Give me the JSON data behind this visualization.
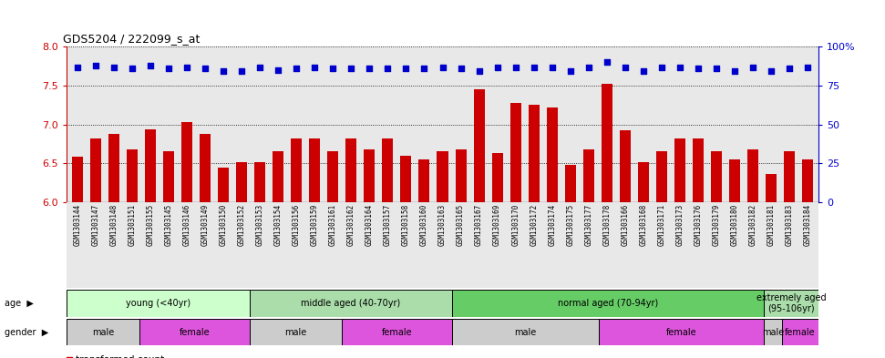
{
  "title": "GDS5204 / 222099_s_at",
  "samples": [
    "GSM1303144",
    "GSM1303147",
    "GSM1303148",
    "GSM1303151",
    "GSM1303155",
    "GSM1303145",
    "GSM1303146",
    "GSM1303149",
    "GSM1303150",
    "GSM1303152",
    "GSM1303153",
    "GSM1303154",
    "GSM1303156",
    "GSM1303159",
    "GSM1303161",
    "GSM1303162",
    "GSM1303164",
    "GSM1303157",
    "GSM1303158",
    "GSM1303160",
    "GSM1303163",
    "GSM1303165",
    "GSM1303167",
    "GSM1303169",
    "GSM1303170",
    "GSM1303172",
    "GSM1303174",
    "GSM1303175",
    "GSM1303177",
    "GSM1303178",
    "GSM1303166",
    "GSM1303168",
    "GSM1303171",
    "GSM1303173",
    "GSM1303176",
    "GSM1303179",
    "GSM1303180",
    "GSM1303182",
    "GSM1303181",
    "GSM1303183",
    "GSM1303184"
  ],
  "bar_values": [
    6.58,
    6.82,
    6.88,
    6.68,
    6.94,
    6.66,
    7.03,
    6.88,
    6.44,
    6.52,
    6.52,
    6.65,
    6.82,
    6.82,
    6.66,
    6.82,
    6.68,
    6.82,
    6.6,
    6.55,
    6.65,
    6.68,
    7.45,
    6.63,
    7.28,
    7.25,
    7.22,
    6.48,
    6.68,
    7.52,
    6.92,
    6.52,
    6.66,
    6.82,
    6.82,
    6.65,
    6.55,
    6.68,
    6.36,
    6.65,
    6.55
  ],
  "percentile_values": [
    86.5,
    87.5,
    86.5,
    86.0,
    87.5,
    86.0,
    86.5,
    86.0,
    84.0,
    84.0,
    86.5,
    85.0,
    86.0,
    86.5,
    86.0,
    86.0,
    86.0,
    86.0,
    86.0,
    86.0,
    86.5,
    86.0,
    84.0,
    86.5,
    86.5,
    86.5,
    86.5,
    84.0,
    86.5,
    90.0,
    86.5,
    84.0,
    86.5,
    86.5,
    86.0,
    86.0,
    84.0,
    86.5,
    84.0,
    86.0,
    86.5
  ],
  "ylim_left": [
    6.0,
    8.0
  ],
  "ylim_right": [
    0,
    100
  ],
  "yticks_left": [
    6.0,
    6.5,
    7.0,
    7.5,
    8.0
  ],
  "yticks_right": [
    0,
    25,
    50,
    75,
    100
  ],
  "bar_color": "#cc0000",
  "dot_color": "#0000cc",
  "plot_bg": "#e8e8e8",
  "age_groups": [
    {
      "label": "young (<40yr)",
      "start": 0,
      "end": 10,
      "color": "#ccffcc"
    },
    {
      "label": "middle aged (40-70yr)",
      "start": 10,
      "end": 21,
      "color": "#aaddaa"
    },
    {
      "label": "normal aged (70-94yr)",
      "start": 21,
      "end": 38,
      "color": "#66cc66"
    },
    {
      "label": "extremely aged\n(95-106yr)",
      "start": 38,
      "end": 41,
      "color": "#aaddaa"
    }
  ],
  "gender_groups": [
    {
      "label": "male",
      "start": 0,
      "end": 4,
      "color": "#dddddd"
    },
    {
      "label": "female",
      "start": 4,
      "end": 10,
      "color": "#dd66dd"
    },
    {
      "label": "male",
      "start": 10,
      "end": 15,
      "color": "#dddddd"
    },
    {
      "label": "female",
      "start": 15,
      "end": 21,
      "color": "#dd66dd"
    },
    {
      "label": "male",
      "start": 21,
      "end": 29,
      "color": "#dddddd"
    },
    {
      "label": "female",
      "start": 29,
      "end": 38,
      "color": "#dd66dd"
    },
    {
      "label": "male",
      "start": 38,
      "end": 39,
      "color": "#dddddd"
    },
    {
      "label": "female",
      "start": 39,
      "end": 41,
      "color": "#dd66dd"
    }
  ]
}
